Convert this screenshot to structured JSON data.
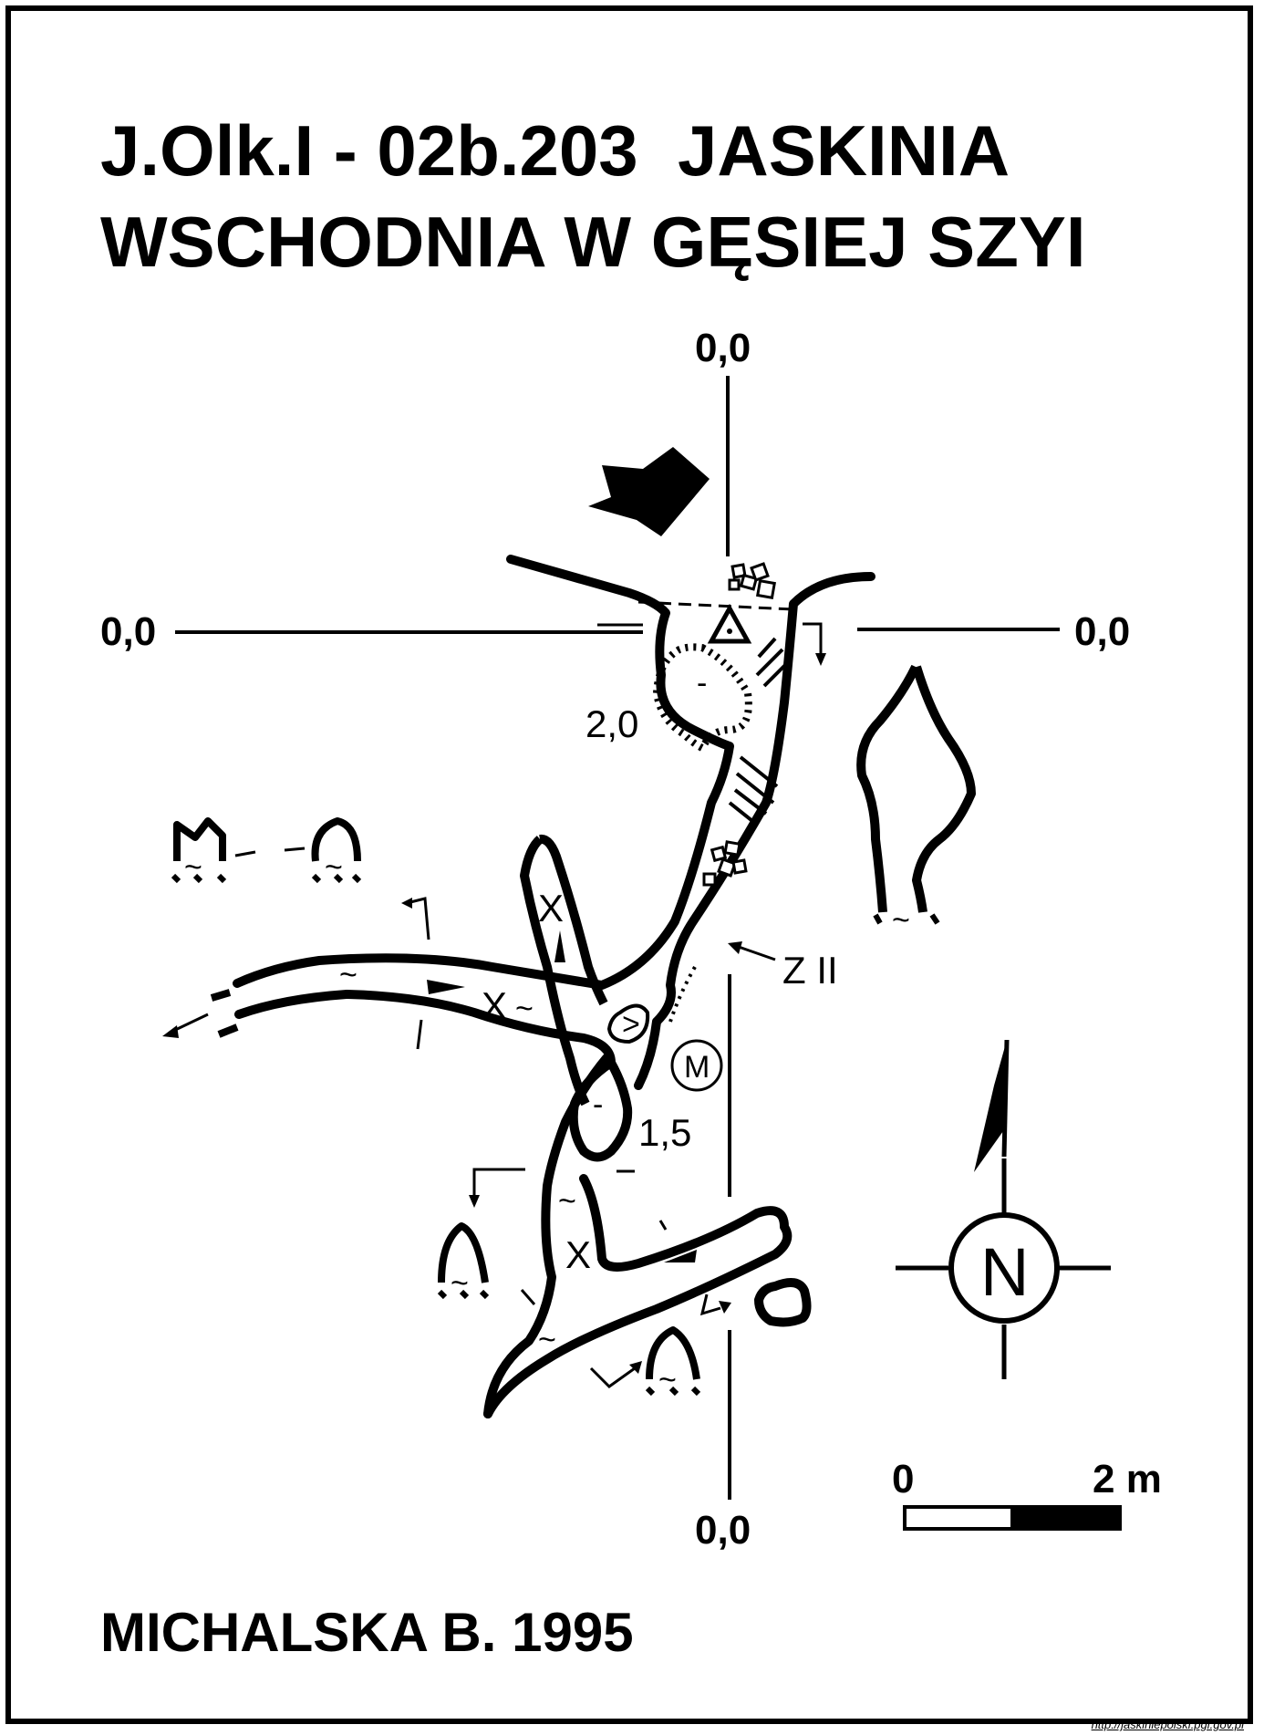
{
  "title": {
    "line1": "J.Olk.I - 02b.203  JASKINIA",
    "line2": "WSCHODNIA W GĘSIEJ SZYI"
  },
  "author": "MICHALSKA B. 1995",
  "source": "http://jaskiniepolski.pgi.gov.pl",
  "grid_labels": {
    "top": "0,0",
    "left": "0,0",
    "right": "0,0",
    "bottom": "0,0"
  },
  "depth_labels": {
    "upper": "2,0",
    "lower": "1,5"
  },
  "profile_label": "Z II",
  "marker": "M",
  "floor_symbols": {
    "debris": "X",
    "water": "~",
    "minus": "-"
  },
  "north_label": "N",
  "scale_bar": {
    "start_label": "0",
    "end_label": "2 m"
  },
  "colors": {
    "ink": "#000000",
    "paper": "#ffffff"
  }
}
